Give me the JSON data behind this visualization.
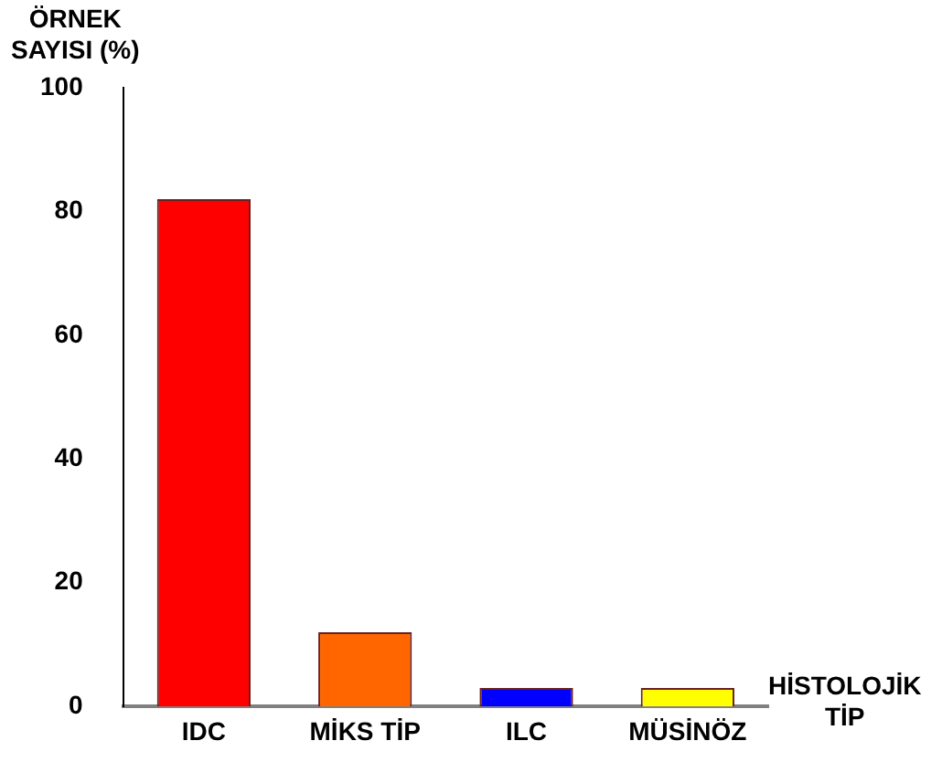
{
  "chart_data": {
    "type": "bar",
    "ylabel": "ÖRNEK\nSAYISI (%)",
    "xlabel": "HİSTOLOJİK\nTİP",
    "categories": [
      "IDC",
      "MİKS TİP",
      "ILC",
      "MÜSİNÖZ"
    ],
    "values": [
      82,
      12,
      3,
      3
    ],
    "colors": [
      "#ff0000",
      "#ff6600",
      "#0000ff",
      "#ffff00"
    ],
    "ylim": [
      0,
      100
    ],
    "yticks": [
      0,
      20,
      40,
      60,
      80,
      100
    ],
    "grid": false,
    "legend": false
  }
}
